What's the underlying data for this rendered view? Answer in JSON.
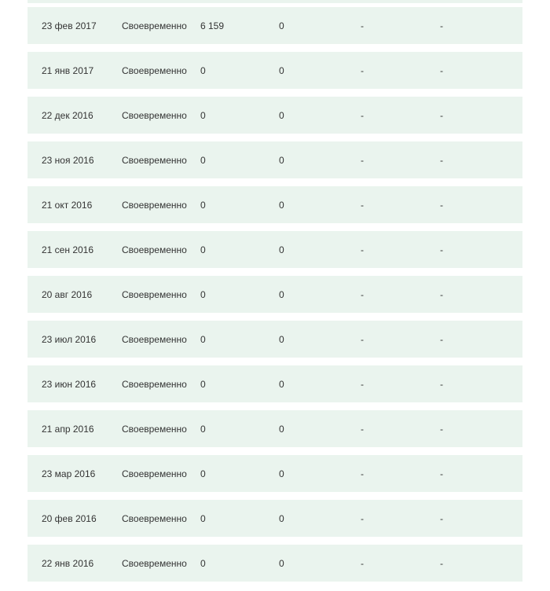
{
  "colors": {
    "row_bg": "#eaf4ee",
    "text": "#333333",
    "page_bg": "#ffffff"
  },
  "table": {
    "rows": [
      {
        "date": "23 фев 2017",
        "status": "Своевременно",
        "col3": "6 159",
        "col4": "0",
        "col5": "-",
        "col6": "-"
      },
      {
        "date": "21 янв 2017",
        "status": "Своевременно",
        "col3": "0",
        "col4": "0",
        "col5": "-",
        "col6": "-"
      },
      {
        "date": "22 дек 2016",
        "status": "Своевременно",
        "col3": "0",
        "col4": "0",
        "col5": "-",
        "col6": "-"
      },
      {
        "date": "23 ноя 2016",
        "status": "Своевременно",
        "col3": "0",
        "col4": "0",
        "col5": "-",
        "col6": "-"
      },
      {
        "date": "21 окт 2016",
        "status": "Своевременно",
        "col3": "0",
        "col4": "0",
        "col5": "-",
        "col6": "-"
      },
      {
        "date": "21 сен 2016",
        "status": "Своевременно",
        "col3": "0",
        "col4": "0",
        "col5": "-",
        "col6": "-"
      },
      {
        "date": "20 авг 2016",
        "status": "Своевременно",
        "col3": "0",
        "col4": "0",
        "col5": "-",
        "col6": "-"
      },
      {
        "date": "23 июл 2016",
        "status": "Своевременно",
        "col3": "0",
        "col4": "0",
        "col5": "-",
        "col6": "-"
      },
      {
        "date": "23 июн 2016",
        "status": "Своевременно",
        "col3": "0",
        "col4": "0",
        "col5": "-",
        "col6": "-"
      },
      {
        "date": "21 апр 2016",
        "status": "Своевременно",
        "col3": "0",
        "col4": "0",
        "col5": "-",
        "col6": "-"
      },
      {
        "date": "23 мар 2016",
        "status": "Своевременно",
        "col3": "0",
        "col4": "0",
        "col5": "-",
        "col6": "-"
      },
      {
        "date": "20 фев 2016",
        "status": "Своевременно",
        "col3": "0",
        "col4": "0",
        "col5": "-",
        "col6": "-"
      },
      {
        "date": "22 янв 2016",
        "status": "Своевременно",
        "col3": "0",
        "col4": "0",
        "col5": "-",
        "col6": "-"
      }
    ]
  }
}
